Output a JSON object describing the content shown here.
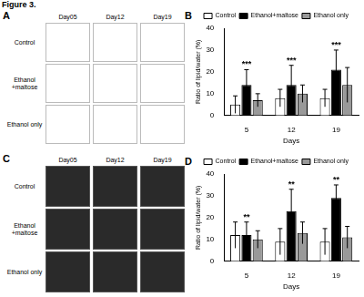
{
  "figure_title": "Figure 3.",
  "image_panels": [
    {
      "panel": "A",
      "columns": [
        "Day05",
        "Day12",
        "Day19"
      ],
      "rows": [
        "Control",
        "Ethanol +maltose",
        "Ethanol only"
      ]
    },
    {
      "panel": "C",
      "columns": [
        "Day05",
        "Day12",
        "Day19"
      ],
      "rows": [
        "Control",
        "Ethanol +maltose",
        "Ethanol only"
      ]
    }
  ],
  "chart_data": [
    {
      "panel": "B",
      "type": "bar",
      "x_label": "Days",
      "y_label": "Ratio of lipid/water (%)",
      "categories": [
        "5",
        "12",
        "19"
      ],
      "series": [
        {
          "name": "Control",
          "color": "#ffffff",
          "values": [
            5,
            8,
            8
          ],
          "errors": [
            4,
            4,
            4
          ]
        },
        {
          "name": "Ethanol+maltose",
          "color": "#000000",
          "values": [
            14,
            14,
            21
          ],
          "errors": [
            7,
            9,
            9
          ]
        },
        {
          "name": "Ethanol only",
          "color": "#999999",
          "values": [
            7,
            10,
            14
          ],
          "errors": [
            3,
            4,
            8
          ]
        }
      ],
      "annotations": [
        {
          "x": "5",
          "text": "***"
        },
        {
          "x": "12",
          "text": "***"
        },
        {
          "x": "19",
          "text": "***"
        }
      ],
      "ylim": [
        0,
        40
      ],
      "yticks": [
        0,
        10,
        20,
        30,
        40
      ],
      "grid": false,
      "legend": "top"
    },
    {
      "panel": "D",
      "type": "bar",
      "x_label": "Days",
      "y_label": "Ratio of lipid/water (%)",
      "categories": [
        "5",
        "12",
        "19"
      ],
      "series": [
        {
          "name": "Control",
          "color": "#ffffff",
          "values": [
            12,
            9,
            9
          ],
          "errors": [
            6,
            6,
            6
          ]
        },
        {
          "name": "Ethanol+maltose",
          "color": "#000000",
          "values": [
            12,
            23,
            29
          ],
          "errors": [
            6,
            10,
            6
          ]
        },
        {
          "name": "Ethanol only",
          "color": "#999999",
          "values": [
            10,
            13,
            11
          ],
          "errors": [
            4,
            5,
            5
          ]
        }
      ],
      "annotations": [
        {
          "x": "5",
          "text": "**"
        },
        {
          "x": "12",
          "text": "**"
        },
        {
          "x": "19",
          "text": "**"
        }
      ],
      "ylim": [
        0,
        40
      ],
      "yticks": [
        0,
        10,
        20,
        30,
        40
      ],
      "grid": false,
      "legend": "top"
    }
  ]
}
